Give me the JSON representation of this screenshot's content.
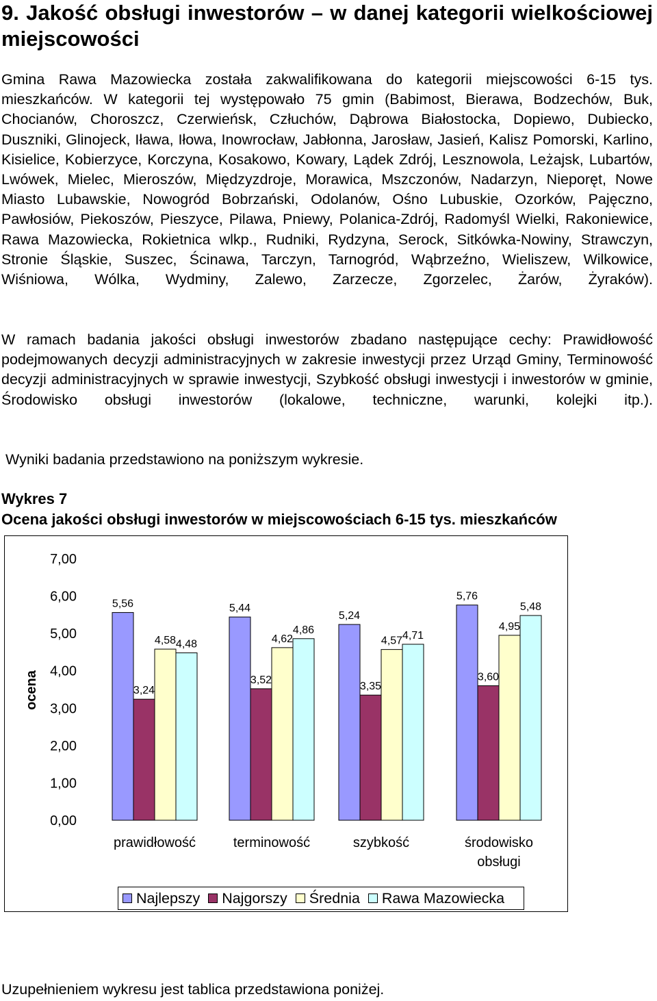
{
  "section": {
    "title": "9. Jakość obsługi inwestorów – w danej kategorii wielkościowej miejscowości"
  },
  "text": {
    "p1": "Gmina Rawa Mazowiecka została zakwalifikowana do kategorii miejscowości 6-15 tys. mieszkańców. W kategorii tej występowało 75 gmin (Babimost, Bierawa, Bodzechów, Buk, Chocianów, Choroszcz, Czerwieńsk, Człuchów, Dąbrowa Białostocka, Dopiewo, Dubiecko, Duszniki, Glinojeck, Iława, Iłowa, Inowrocław, Jabłonna, Jarosław, Jasień, Kalisz Pomorski, Karlino, Kisielice, Kobierzyce, Korczyna, Kosakowo, Kowary, Lądek Zdrój, Lesznowola, Leżajsk, Lubartów, Lwówek, Mielec, Mieroszów, Międzyzdroje, Morawica, Mszczonów, Nadarzyn, Nieporęt, Nowe Miasto Lubawskie, Nowogród Bobrzański, Odolanów, Ośno Lubuskie, Ozorków, Pajęczno, Pawłosiów, Piekoszów, Pieszyce, Pilawa, Pniewy, Polanica-Zdrój, Radomyśl Wielki, Rakoniewice, Rawa Mazowiecka, Rokietnica wlkp., Rudniki, Rydzyna, Serock, Sitkówka-Nowiny, Strawczyn, Stronie Śląskie, Suszec, Ścinawa, Tarczyn, Tarnogród, Wąbrzeźno, Wieliszew, Wilkowice, Wiśniowa, Wólka, Wydminy, Zalewo, Zarzecze, Zgorzelec, Żarów, Żyraków).",
    "p2": "W ramach badania jakości obsługi inwestorów zbadano następujące cechy: Prawidłowość podejmowanych decyzji administracyjnych w zakresie inwestycji przez Urząd Gminy, Terminowość decyzji administracyjnych w sprawie inwestycji, Szybkość obsługi inwestycji i inwestorów w gminie, Środowisko obsługi inwestorów (lokalowe, techniczne, warunki, kolejki itp.).",
    "p3": "Wyniki badania przedstawiono na poniższym wykresie.",
    "fig_label": "Wykres 7",
    "fig_title": "Ocena jakości obsługi inwestorów w miejscowościach 6-15 tys. mieszkańców",
    "footer": "Uzupełnieniem wykresu jest tablica przedstawiona poniżej."
  },
  "chart_data": {
    "type": "bar",
    "categories": [
      "prawidłowość",
      "terminowość",
      "szybkość",
      "środowisko obsługi"
    ],
    "category_lines": [
      [
        "prawidłowość"
      ],
      [
        "terminowość"
      ],
      [
        "szybkość"
      ],
      [
        "środowisko",
        "obsługi"
      ]
    ],
    "series": [
      {
        "name": "Najlepszy",
        "values": [
          5.56,
          5.44,
          5.24,
          5.76
        ],
        "labels": [
          "5,56",
          "5,44",
          "5,24",
          "5,76"
        ],
        "color": "#9999ff"
      },
      {
        "name": "Najgorszy",
        "values": [
          3.24,
          3.52,
          3.35,
          3.6
        ],
        "labels": [
          "3,24",
          "3,52",
          "3,35",
          "3,60"
        ],
        "color": "#993366"
      },
      {
        "name": "Średnia",
        "values": [
          4.58,
          4.62,
          4.57,
          4.95
        ],
        "labels": [
          "4,58",
          "4,62",
          "4,57",
          "4,95"
        ],
        "color": "#ffffcc"
      },
      {
        "name": "Rawa Mazowiecka",
        "values": [
          4.48,
          4.86,
          4.71,
          5.48
        ],
        "labels": [
          "4,48",
          "4,86",
          "4,71",
          "5,48"
        ],
        "color": "#ccffff"
      }
    ],
    "ylabel": "ocena",
    "ylim": [
      0,
      7
    ],
    "yticks": [
      "0,00",
      "1,00",
      "2,00",
      "3,00",
      "4,00",
      "5,00",
      "6,00",
      "7,00"
    ],
    "grid": false,
    "legend": "bottom"
  }
}
